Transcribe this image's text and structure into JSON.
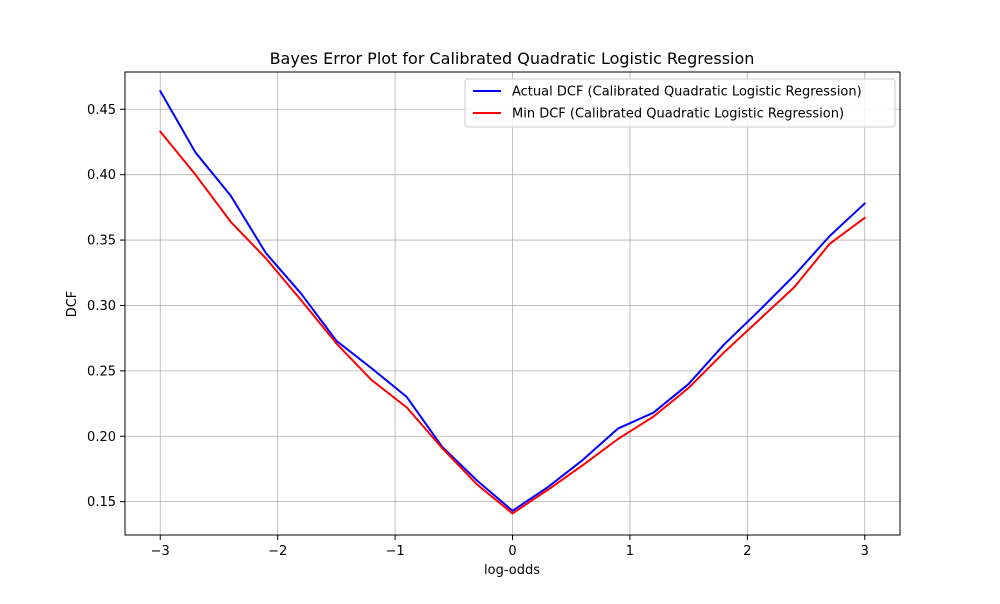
{
  "chart_data": {
    "type": "line",
    "title": "Bayes Error Plot for Calibrated Quadratic Logistic Regression",
    "xlabel": "log-odds",
    "ylabel": "DCF",
    "xlim": [
      -3.3,
      3.3
    ],
    "ylim": [
      0.1245,
      0.4785
    ],
    "xticks": [
      -3,
      -2,
      -1,
      0,
      1,
      2,
      3
    ],
    "xtick_labels": [
      "−3",
      "−2",
      "−1",
      "0",
      "1",
      "2",
      "3"
    ],
    "yticks": [
      0.15,
      0.2,
      0.25,
      0.3,
      0.35,
      0.4,
      0.45
    ],
    "ytick_labels": [
      "0.15",
      "0.20",
      "0.25",
      "0.30",
      "0.35",
      "0.40",
      "0.45"
    ],
    "grid": true,
    "legend_position": "top-right",
    "x": [
      -3.0,
      -2.7,
      -2.4,
      -2.1,
      -1.8,
      -1.5,
      -1.2,
      -0.9,
      -0.6,
      -0.3,
      0.0,
      0.3,
      0.6,
      0.9,
      1.2,
      1.5,
      1.8,
      2.1,
      2.4,
      2.7,
      3.0
    ],
    "series": [
      {
        "name": "Actual DCF (Calibrated Quadratic Logistic Regression)",
        "color": "#0000ff",
        "values": [
          0.464,
          0.417,
          0.384,
          0.34,
          0.309,
          0.273,
          0.252,
          0.23,
          0.192,
          0.166,
          0.143,
          0.161,
          0.182,
          0.206,
          0.218,
          0.24,
          0.27,
          0.296,
          0.323,
          0.353,
          0.378
        ]
      },
      {
        "name": "Min DCF (Calibrated Quadratic Logistic Regression)",
        "color": "#ff0000",
        "values": [
          0.433,
          0.4,
          0.364,
          0.336,
          0.304,
          0.271,
          0.243,
          0.222,
          0.191,
          0.163,
          0.141,
          0.159,
          0.178,
          0.198,
          0.215,
          0.237,
          0.264,
          0.289,
          0.314,
          0.347,
          0.367
        ]
      }
    ]
  }
}
